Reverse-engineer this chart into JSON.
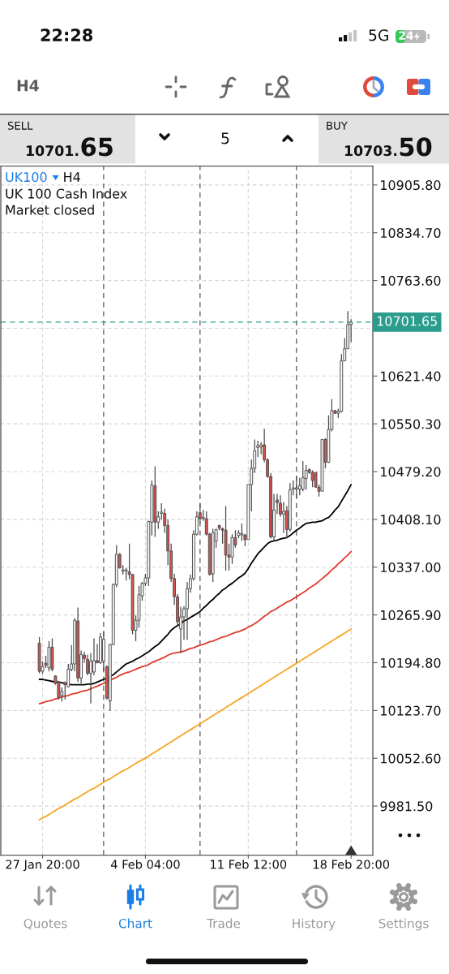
{
  "chart_data": {
    "type": "candlestick",
    "title": "UK100",
    "subtitle": "UK 100 Cash Index",
    "annotations": [
      "22:28",
      "5G",
      "24",
      "H4",
      "SELL",
      "10701.65",
      "5",
      "BUY",
      "10703.50",
      "H4",
      "Market closed",
      "Quotes",
      "Chart",
      "Trade",
      "History",
      "Settings"
    ],
    "categories": [
      null,
      "27 Jan 20:00",
      null,
      null,
      null,
      null,
      null,
      null,
      null,
      null,
      null,
      null,
      null,
      null,
      null,
      null,
      null,
      null,
      null,
      null,
      null,
      null,
      null,
      null,
      null,
      null,
      null,
      null,
      null,
      null,
      null,
      null,
      null,
      "4 Feb 04:00",
      null,
      null,
      null,
      null,
      null,
      null,
      null,
      null,
      null,
      null,
      null,
      null,
      null,
      null,
      null,
      null,
      null,
      null,
      null,
      null,
      null,
      null,
      null,
      null,
      null,
      null,
      null,
      null,
      null,
      null,
      null,
      "11 Feb 12:00",
      null,
      null,
      null,
      null,
      null,
      null,
      null,
      null,
      null,
      null,
      null,
      null,
      null,
      null,
      null,
      null,
      null,
      null,
      null,
      null,
      null,
      null,
      null,
      null,
      null,
      null,
      null,
      null,
      null,
      null,
      null,
      "18 Feb 20:00"
    ],
    "ohlc": [
      [
        10224,
        10233,
        10179,
        10182
      ],
      [
        10182,
        10197,
        10178,
        10189
      ],
      [
        10194,
        10205,
        10187,
        10191
      ],
      [
        10187,
        10227,
        10182,
        10218
      ],
      [
        10218,
        10231,
        10182,
        10185
      ],
      [
        10175,
        10176,
        10162,
        10164
      ],
      [
        10166,
        10168,
        10140,
        10143
      ],
      [
        10146,
        10158,
        10137,
        10152
      ],
      [
        10165,
        10167,
        10140,
        10162
      ],
      [
        10159,
        10193,
        10158,
        10185
      ],
      [
        10185,
        10221,
        10182,
        10193
      ],
      [
        10193,
        10261,
        10182,
        10258
      ],
      [
        10257,
        10277,
        10166,
        10172
      ],
      [
        10172,
        10213,
        10164,
        10207
      ],
      [
        10206,
        10211,
        10195,
        10201
      ],
      [
        10200,
        10207,
        10176,
        10179
      ],
      [
        10179,
        10209,
        10134,
        10197
      ],
      [
        10181,
        10231,
        10176,
        10198
      ],
      [
        10198,
        10223,
        10194,
        10195
      ],
      [
        10195,
        10239,
        10193,
        10233
      ],
      [
        10197,
        10241,
        10182,
        10230
      ],
      [
        10189,
        10191,
        10140,
        10142
      ],
      [
        10138,
        10223,
        10123,
        10222
      ],
      [
        10222,
        10313,
        10221,
        10311
      ],
      [
        10311,
        10370,
        10307,
        10356
      ],
      [
        10356,
        10358,
        10335,
        10336
      ],
      [
        10331,
        10340,
        10326,
        10333
      ],
      [
        10331,
        10336,
        10317,
        10333
      ],
      [
        10330,
        10372,
        10319,
        10326
      ],
      [
        10326,
        10327,
        10237,
        10243
      ],
      [
        10243,
        10265,
        10227,
        10258
      ],
      [
        10258,
        10309,
        10247,
        10296
      ],
      [
        10294,
        10315,
        10287,
        10313
      ],
      [
        10313,
        10327,
        10309,
        10321
      ],
      [
        10321,
        10406,
        10309,
        10405
      ],
      [
        10404,
        10466,
        10384,
        10459
      ],
      [
        10458,
        10487,
        10382,
        10404
      ],
      [
        10404,
        10420,
        10394,
        10412
      ],
      [
        10417,
        10432,
        10408,
        10419
      ],
      [
        10417,
        10424,
        10388,
        10399
      ],
      [
        10399,
        10408,
        10340,
        10361
      ],
      [
        10361,
        10372,
        10315,
        10320
      ],
      [
        10320,
        10327,
        10281,
        10293
      ],
      [
        10293,
        10297,
        10251,
        10256
      ],
      [
        10245,
        10278,
        10209,
        10263
      ],
      [
        10263,
        10279,
        10229,
        10275
      ],
      [
        10275,
        10315,
        10229,
        10305
      ],
      [
        10305,
        10326,
        10299,
        10320
      ],
      [
        10320,
        10392,
        10317,
        10386
      ],
      [
        10386,
        10420,
        10384,
        10412
      ],
      [
        10418,
        10432,
        10402,
        10409
      ],
      [
        10409,
        10422,
        10406,
        10411
      ],
      [
        10409,
        10420,
        10384,
        10386
      ],
      [
        10386,
        10388,
        10325,
        10326
      ],
      [
        10327,
        10394,
        10315,
        10388
      ],
      [
        10376,
        10394,
        10366,
        10393
      ],
      [
        10399,
        10400,
        10392,
        10395
      ],
      [
        10394,
        10396,
        10372,
        10392
      ],
      [
        10392,
        10428,
        10332,
        10355
      ],
      [
        10355,
        10372,
        10332,
        10352
      ],
      [
        10352,
        10386,
        10342,
        10381
      ],
      [
        10381,
        10392,
        10366,
        10370
      ],
      [
        10384,
        10392,
        10380,
        10388
      ],
      [
        10385,
        10402,
        10376,
        10387
      ],
      [
        10385,
        10386,
        10368,
        10378
      ],
      [
        10378,
        10460,
        10378,
        10460
      ],
      [
        10460,
        10497,
        10420,
        10484
      ],
      [
        10484,
        10527,
        10477,
        10510
      ],
      [
        10515,
        10525,
        10501,
        10518
      ],
      [
        10516,
        10523,
        10505,
        10519
      ],
      [
        10519,
        10543,
        10493,
        10497
      ],
      [
        10497,
        10499,
        10470,
        10472
      ],
      [
        10472,
        10477,
        10380,
        10382
      ],
      [
        10382,
        10446,
        10376,
        10422
      ],
      [
        10437,
        10446,
        10416,
        10433
      ],
      [
        10432,
        10444,
        10412,
        10416
      ],
      [
        10416,
        10434,
        10388,
        10420
      ],
      [
        10421,
        10428,
        10380,
        10393
      ],
      [
        10393,
        10462,
        10390,
        10452
      ],
      [
        10453,
        10466,
        10444,
        10455
      ],
      [
        10453,
        10472,
        10440,
        10455
      ],
      [
        10453,
        10470,
        10444,
        10458
      ],
      [
        10453,
        10495,
        10450,
        10470
      ],
      [
        10469,
        10489,
        10452,
        10481
      ],
      [
        10482,
        10484,
        10476,
        10478
      ],
      [
        10478,
        10481,
        10456,
        10466
      ],
      [
        10478,
        10478,
        10456,
        10456
      ],
      [
        10456,
        10460,
        10442,
        10450
      ],
      [
        10450,
        10527,
        10450,
        10527
      ],
      [
        10527,
        10529,
        10484,
        10493
      ],
      [
        10493,
        10563,
        10492,
        10542
      ],
      [
        10542,
        10587,
        10539,
        10570
      ],
      [
        10570,
        10571,
        10565,
        10566
      ],
      [
        10566,
        10573,
        10559,
        10569
      ],
      [
        10569,
        10654,
        10567,
        10644
      ],
      [
        10644,
        10678,
        10644,
        10662
      ],
      [
        10662,
        10718,
        10662,
        10698
      ],
      [
        10698,
        10706,
        10672,
        10701.65
      ]
    ],
    "colors": [
      "#d9534f",
      "#ffffff",
      "#d9534f",
      "#ffffff",
      "#d9534f",
      "#d9534f",
      "#d9534f",
      "#ffffff",
      "#d9534f",
      "#ffffff",
      "#ffffff",
      "#ffffff",
      "#d9534f",
      "#ffffff",
      "#d9534f",
      "#d9534f",
      "#ffffff",
      "#ffffff",
      "#d9534f",
      "#ffffff",
      "#ffffff",
      "#d9534f",
      "#ffffff",
      "#ffffff",
      "#ffffff",
      "#d9534f",
      "#ffffff",
      "#ffffff",
      "#d9534f",
      "#d9534f",
      "#ffffff",
      "#ffffff",
      "#ffffff",
      "#ffffff",
      "#ffffff",
      "#ffffff",
      "#d9534f",
      "#ffffff",
      "#ffffff",
      "#d9534f",
      "#d9534f",
      "#d9534f",
      "#d9534f",
      "#d9534f",
      "#ffffff",
      "#ffffff",
      "#ffffff",
      "#ffffff",
      "#ffffff",
      "#ffffff",
      "#d9534f",
      "#ffffff",
      "#d9534f",
      "#d9534f",
      "#ffffff",
      "#ffffff",
      "#d9534f",
      "#d9534f",
      "#d9534f",
      "#d9534f",
      "#ffffff",
      "#d9534f",
      "#ffffff",
      "#ffffff",
      "#d9534f",
      "#ffffff",
      "#ffffff",
      "#ffffff",
      "#ffffff",
      "#ffffff",
      "#d9534f",
      "#d9534f",
      "#d9534f",
      "#ffffff",
      "#d9534f",
      "#d9534f",
      "#ffffff",
      "#d9534f",
      "#ffffff",
      "#ffffff",
      "#ffffff",
      "#ffffff",
      "#ffffff",
      "#ffffff",
      "#d9534f",
      "#d9534f",
      "#d9534f",
      "#d9534f",
      "#ffffff",
      "#d9534f",
      "#ffffff",
      "#ffffff",
      "#d9534f",
      "#ffffff",
      "#ffffff",
      "#ffffff",
      "#ffffff",
      "#ffffff"
    ],
    "series": [
      {
        "type": "line",
        "color": "#000000",
        "values": [
          10170,
          10170,
          10169,
          10168,
          10167,
          10166,
          10166,
          10165,
          10164,
          10163,
          10162,
          10162,
          10162,
          10162,
          10162,
          10163,
          10163,
          10164,
          10166,
          10168,
          10170,
          10172,
          10174,
          10177,
          10181,
          10185,
          10189,
          10193,
          10195,
          10197,
          10200,
          10202,
          10205,
          10208,
          10211,
          10215,
          10219,
          10222,
          10227,
          10232,
          10237,
          10243,
          10247,
          10250,
          10253,
          10257,
          10259,
          10262,
          10265,
          10268,
          10271,
          10276,
          10280,
          10285,
          10289,
          10294,
          10298,
          10303,
          10306,
          10310,
          10313,
          10317,
          10321,
          10324,
          10328,
          10335,
          10343,
          10350,
          10357,
          10362,
          10367,
          10372,
          10375,
          10376,
          10377,
          10379,
          10380,
          10381,
          10384,
          10388,
          10392,
          10395,
          10399,
          10402,
          10403,
          10404,
          10404,
          10405,
          10406,
          10409,
          10411,
          10416,
          10422,
          10427,
          10435,
          10443,
          10451,
          10460
        ]
      },
      {
        "type": "line",
        "color": "#e0392b",
        "values": [
          10134,
          10135,
          10137,
          10138,
          10139,
          10141,
          10142,
          10144,
          10145,
          10146,
          10148,
          10149,
          10150,
          10152,
          10153,
          10154,
          10156,
          10158,
          10160,
          10162,
          10164,
          10167,
          10169,
          10171,
          10173,
          10176,
          10178,
          10180,
          10181,
          10183,
          10185,
          10187,
          10189,
          10190,
          10192,
          10195,
          10197,
          10199,
          10201,
          10203,
          10206,
          10208,
          10209,
          10210,
          10211,
          10212,
          10214,
          10216,
          10217,
          10219,
          10221,
          10222,
          10224,
          10226,
          10227,
          10229,
          10231,
          10233,
          10234,
          10236,
          10238,
          10240,
          10241,
          10243,
          10245,
          10248,
          10250,
          10253,
          10256,
          10260,
          10264,
          10267,
          10271,
          10273,
          10276,
          10279,
          10282,
          10285,
          10287,
          10290,
          10293,
          10296,
          10299,
          10302,
          10306,
          10309,
          10312,
          10316,
          10320,
          10324,
          10328,
          10333,
          10337,
          10342,
          10346,
          10351,
          10355,
          10360
        ]
      },
      {
        "type": "line",
        "color": "#f5a623",
        "values": [
          9961,
          9964,
          9966,
          9969,
          9972,
          9975,
          9978,
          9980,
          9983,
          9986,
          9989,
          9992,
          9994,
          9997,
          10000,
          10003,
          10006,
          10008,
          10011,
          10014,
          10017,
          10020,
          10022,
          10025,
          10028,
          10031,
          10034,
          10036,
          10039,
          10042,
          10045,
          10048,
          10050,
          10053,
          10056,
          10059,
          10062,
          10065,
          10068,
          10071,
          10074,
          10077,
          10080,
          10083,
          10086,
          10089,
          10092,
          10095,
          10098,
          10101,
          10104,
          10107,
          10110,
          10113,
          10116,
          10119,
          10122,
          10125,
          10128,
          10131,
          10134,
          10137,
          10140,
          10143,
          10146,
          10149,
          10152,
          10155,
          10158,
          10161,
          10164,
          10167,
          10170,
          10173,
          10176,
          10179,
          10182,
          10185,
          10188,
          10191,
          10194,
          10197,
          10200,
          10203,
          10206,
          10209,
          10212,
          10215,
          10218,
          10221,
          10224,
          10227,
          10230,
          10233,
          10236,
          10239,
          10242,
          10245
        ]
      }
    ],
    "ylim": [
      9908.4,
      10933.9
    ],
    "yticks": [
      {
        "value": 9981.5,
        "label": "9981.50"
      },
      {
        "value": 10052.6,
        "label": "10052.60"
      },
      {
        "value": 10123.7,
        "label": "10123.70"
      },
      {
        "value": 10194.8,
        "label": "10194.80"
      },
      {
        "value": 10265.9,
        "label": "10265.90"
      },
      {
        "value": 10337,
        "label": "10337.00"
      },
      {
        "value": 10408.1,
        "label": "10408.10"
      },
      {
        "value": 10479.2,
        "label": "10479.20"
      },
      {
        "value": 10550.3,
        "label": "10550.30"
      },
      {
        "value": 10621.4,
        "label": "10621.40"
      },
      {
        "value": 10692.5,
        "label": null
      },
      {
        "value": 10763.6,
        "label": "10763.60"
      },
      {
        "value": 10834.7,
        "label": "10834.70"
      },
      {
        "value": 10905.8,
        "label": "10905.80"
      }
    ],
    "ref_lines": [
      {
        "axis": "y",
        "value": 10701.65,
        "label": "10701.65",
        "color": "#2a9d8f",
        "line_style": "dashed"
      }
    ],
    "grid": true
  }
}
